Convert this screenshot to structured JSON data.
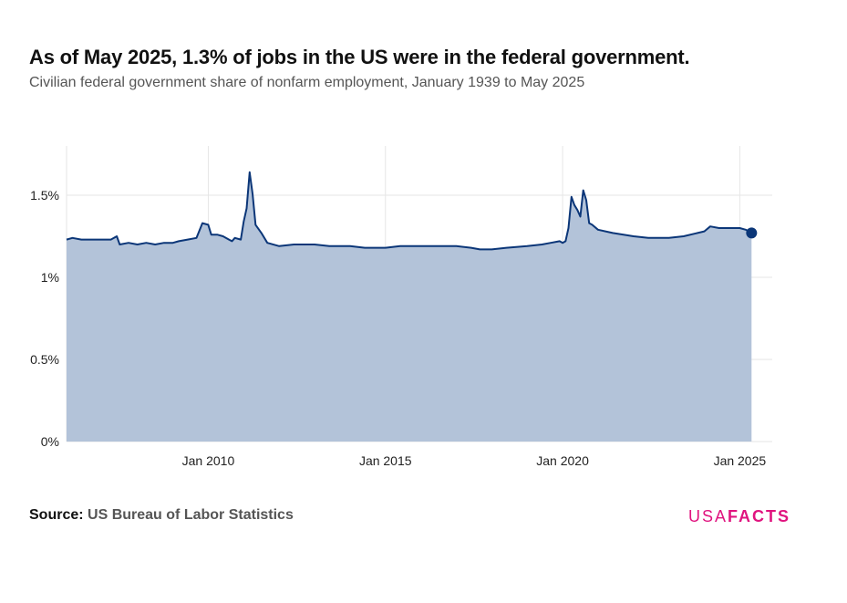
{
  "header": {
    "title": "As of May 2025, 1.3% of jobs in the US were in the federal government.",
    "subtitle": "Civilian federal government share of nonfarm employment, January 1939 to May 2025"
  },
  "footer": {
    "source_label": "Source:",
    "source_value": "US Bureau of Labor Statistics",
    "logo_light": "USA",
    "logo_bold": "FACTS"
  },
  "colors": {
    "line": "#0b3678",
    "fill": "#b3c3d9",
    "grid": "#e6e6e6",
    "logo": "#e0147f"
  },
  "chart_data": {
    "type": "area",
    "title": "",
    "xlabel": "",
    "ylabel": "",
    "x_range": [
      "2006-01",
      "2025-12"
    ],
    "ylim": [
      0,
      1.8
    ],
    "y_ticks": [
      {
        "value": 0,
        "label": "0%"
      },
      {
        "value": 0.5,
        "label": "0.5%"
      },
      {
        "value": 1.0,
        "label": "1%"
      },
      {
        "value": 1.5,
        "label": "1.5%"
      }
    ],
    "x_ticks": [
      {
        "value": "2010-01",
        "label": "Jan 2010"
      },
      {
        "value": "2015-01",
        "label": "Jan 2015"
      },
      {
        "value": "2020-01",
        "label": "Jan 2020"
      },
      {
        "value": "2025-01",
        "label": "Jan 2025"
      }
    ],
    "grid": true,
    "legend": "none",
    "end_marker": {
      "x": "2025-05",
      "y": 1.27
    },
    "series": [
      {
        "points": [
          [
            "2006-01",
            1.23
          ],
          [
            "2006-03",
            1.24
          ],
          [
            "2006-06",
            1.23
          ],
          [
            "2006-09",
            1.23
          ],
          [
            "2007-01",
            1.23
          ],
          [
            "2007-04",
            1.23
          ],
          [
            "2007-06",
            1.25
          ],
          [
            "2007-07",
            1.2
          ],
          [
            "2007-10",
            1.21
          ],
          [
            "2008-01",
            1.2
          ],
          [
            "2008-04",
            1.21
          ],
          [
            "2008-07",
            1.2
          ],
          [
            "2008-10",
            1.21
          ],
          [
            "2009-01",
            1.21
          ],
          [
            "2009-03",
            1.22
          ],
          [
            "2009-06",
            1.23
          ],
          [
            "2009-09",
            1.24
          ],
          [
            "2009-11",
            1.33
          ],
          [
            "2010-01",
            1.32
          ],
          [
            "2010-02",
            1.26
          ],
          [
            "2010-04",
            1.26
          ],
          [
            "2010-06",
            1.25
          ],
          [
            "2010-08",
            1.23
          ],
          [
            "2010-09",
            1.22
          ],
          [
            "2010-10",
            1.24
          ],
          [
            "2010-12",
            1.23
          ],
          [
            "2011-01",
            1.34
          ],
          [
            "2011-02",
            1.42
          ],
          [
            "2011-03",
            1.64
          ],
          [
            "2011-04",
            1.51
          ],
          [
            "2011-05",
            1.32
          ],
          [
            "2011-07",
            1.27
          ],
          [
            "2011-09",
            1.21
          ],
          [
            "2012-01",
            1.19
          ],
          [
            "2012-06",
            1.2
          ],
          [
            "2013-01",
            1.2
          ],
          [
            "2013-06",
            1.19
          ],
          [
            "2014-01",
            1.19
          ],
          [
            "2014-06",
            1.18
          ],
          [
            "2015-01",
            1.18
          ],
          [
            "2015-06",
            1.19
          ],
          [
            "2016-01",
            1.19
          ],
          [
            "2016-06",
            1.19
          ],
          [
            "2017-01",
            1.19
          ],
          [
            "2017-06",
            1.18
          ],
          [
            "2017-09",
            1.17
          ],
          [
            "2018-01",
            1.17
          ],
          [
            "2018-06",
            1.18
          ],
          [
            "2019-01",
            1.19
          ],
          [
            "2019-06",
            1.2
          ],
          [
            "2019-09",
            1.21
          ],
          [
            "2019-12",
            1.22
          ],
          [
            "2020-01",
            1.21
          ],
          [
            "2020-02",
            1.22
          ],
          [
            "2020-03",
            1.3
          ],
          [
            "2020-04",
            1.49
          ],
          [
            "2020-05",
            1.44
          ],
          [
            "2020-06",
            1.41
          ],
          [
            "2020-07",
            1.37
          ],
          [
            "2020-08",
            1.53
          ],
          [
            "2020-09",
            1.47
          ],
          [
            "2020-10",
            1.33
          ],
          [
            "2020-11",
            1.32
          ],
          [
            "2021-01",
            1.29
          ],
          [
            "2021-06",
            1.27
          ],
          [
            "2022-01",
            1.25
          ],
          [
            "2022-06",
            1.24
          ],
          [
            "2023-01",
            1.24
          ],
          [
            "2023-06",
            1.25
          ],
          [
            "2024-01",
            1.28
          ],
          [
            "2024-03",
            1.31
          ],
          [
            "2024-06",
            1.3
          ],
          [
            "2025-01",
            1.3
          ],
          [
            "2025-03",
            1.29
          ],
          [
            "2025-05",
            1.27
          ]
        ]
      }
    ]
  }
}
